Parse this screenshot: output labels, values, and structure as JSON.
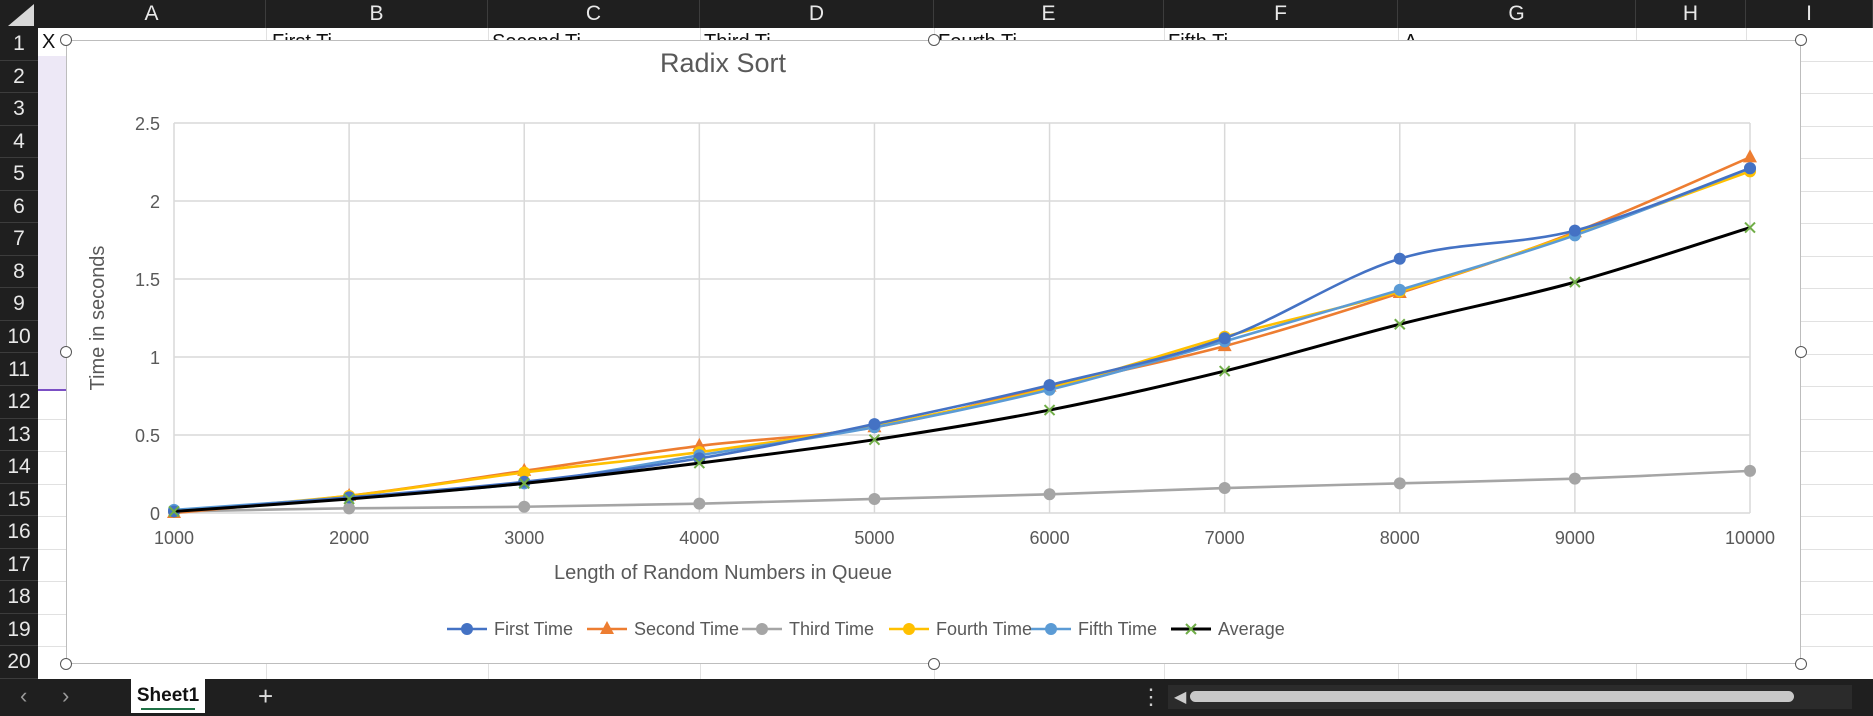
{
  "spreadsheet": {
    "columns": [
      "A",
      "B",
      "C",
      "D",
      "E",
      "F",
      "G",
      "H",
      "I"
    ],
    "rows": [
      "1",
      "2",
      "3",
      "4",
      "5",
      "6",
      "7",
      "8",
      "9",
      "10",
      "11",
      "12",
      "13",
      "14",
      "15",
      "16",
      "17",
      "18",
      "19",
      "20"
    ],
    "row1_visible_fragments": [
      "X",
      "First Ti",
      "Second Ti",
      "Third Ti",
      "Fourth Ti",
      "Fifth Ti",
      "A"
    ],
    "sheet_tab": "Sheet1",
    "add_sheet_icon": "plus-icon",
    "nav_prev_icon": "chevron-left-icon",
    "nav_next_icon": "chevron-right-icon",
    "more_icon": "vertical-ellipsis-icon"
  },
  "colors": {
    "first": "#4472c4",
    "second": "#ed7d31",
    "third": "#a5a5a5",
    "fourth": "#ffc000",
    "fifth": "#5b9bd5",
    "average": "#000000",
    "average_marker": "#70ad47"
  },
  "chart_data": {
    "type": "line",
    "title": "Radix Sort",
    "xlabel": "Length of Random Numbers in Queue",
    "ylabel": "Time in seconds",
    "categories": [
      1000,
      2000,
      3000,
      4000,
      5000,
      6000,
      7000,
      8000,
      9000,
      10000
    ],
    "x_tick_labels": [
      "1000",
      "2000",
      "3000",
      "4000",
      "5000",
      "6000",
      "7000",
      "8000",
      "9000",
      "10000"
    ],
    "y_tick_labels": [
      "0",
      "0.5",
      "1",
      "1.5",
      "2",
      "2.5"
    ],
    "ylim": [
      0,
      2.5
    ],
    "grid": true,
    "legend_position": "bottom",
    "series": [
      {
        "name": "First  Time",
        "marker": "circle",
        "values": [
          0.01,
          0.1,
          0.2,
          0.35,
          0.57,
          0.82,
          1.12,
          1.63,
          1.81,
          2.21
        ]
      },
      {
        "name": "Second Time",
        "marker": "triangle",
        "values": [
          0.0,
          0.11,
          0.27,
          0.43,
          0.55,
          0.81,
          1.07,
          1.41,
          1.8,
          2.28
        ]
      },
      {
        "name": "Third Time",
        "marker": "circle",
        "values": [
          0.01,
          0.03,
          0.04,
          0.06,
          0.09,
          0.12,
          0.16,
          0.19,
          0.22,
          0.27
        ]
      },
      {
        "name": "Fourth Time",
        "marker": "circle",
        "values": [
          0.01,
          0.11,
          0.26,
          0.39,
          0.56,
          0.8,
          1.13,
          1.42,
          1.79,
          2.19
        ]
      },
      {
        "name": "Fifth Time",
        "marker": "circle",
        "values": [
          0.02,
          0.1,
          0.19,
          0.37,
          0.55,
          0.79,
          1.1,
          1.43,
          1.78,
          2.21
        ]
      },
      {
        "name": "Average",
        "marker": "x",
        "values": [
          0.01,
          0.09,
          0.19,
          0.32,
          0.47,
          0.66,
          0.91,
          1.21,
          1.48,
          1.83
        ]
      }
    ]
  }
}
